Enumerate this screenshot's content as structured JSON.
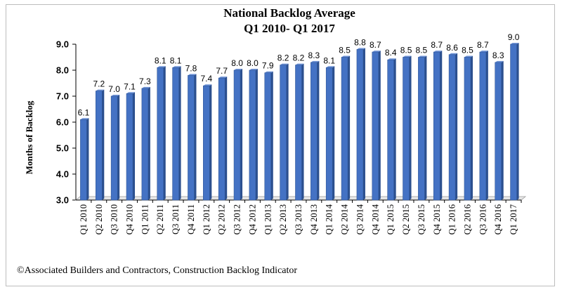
{
  "chart_data": {
    "type": "bar",
    "title": [
      "National Backlog Average",
      "Q1 2010- Q1 2017"
    ],
    "ylabel": "Months of Backlog",
    "xlabel": "",
    "ylim": [
      3.0,
      9.0
    ],
    "yticks": [
      "3.0",
      "4.0",
      "5.0",
      "6.0",
      "7.0",
      "8.0",
      "9.0"
    ],
    "grid": false,
    "legend": "none",
    "bar_color": "#4472c4",
    "categories": [
      "Q1 2010",
      "Q2 2010",
      "Q3 2010",
      "Q4 2010",
      "Q1 2011",
      "Q2 2011",
      "Q3 2011",
      "Q4 2011",
      "Q1 2012",
      "Q2 2012",
      "Q3 2012",
      "Q4 2012",
      "Q1 2013",
      "Q2 2013",
      "Q3 2013",
      "Q4 2013",
      "Q1 2014",
      "Q2 2014",
      "Q3 2014",
      "Q4 2014",
      "Q1 2015",
      "Q2 2015",
      "Q3 2015",
      "Q4 2015",
      "Q1 2016",
      "Q2 2016",
      "Q3 2016",
      "Q4 2016",
      "Q1 2017"
    ],
    "values": [
      6.1,
      7.2,
      7.0,
      7.1,
      7.3,
      8.1,
      8.1,
      7.8,
      7.4,
      7.7,
      8.0,
      8.0,
      7.9,
      8.2,
      8.2,
      8.3,
      8.1,
      8.5,
      8.8,
      8.7,
      8.4,
      8.5,
      8.5,
      8.7,
      8.6,
      8.5,
      8.7,
      8.3,
      9.0
    ],
    "data_labels": [
      "6.1",
      "7.2",
      "7.0",
      "7.1",
      "7.3",
      "8.1",
      "8.1",
      "7.8",
      "7.4",
      "7.7",
      "8.0",
      "8.0",
      "7.9",
      "8.2",
      "8.2",
      "8.3",
      "8.1",
      "8.5",
      "8.8",
      "8.7",
      "8.4",
      "8.5",
      "8.5",
      "8.7",
      "8.6",
      "8.5",
      "8.7",
      "8.3",
      "9.0"
    ]
  },
  "footer": "©Associated Builders and Contractors, Construction Backlog Indicator"
}
